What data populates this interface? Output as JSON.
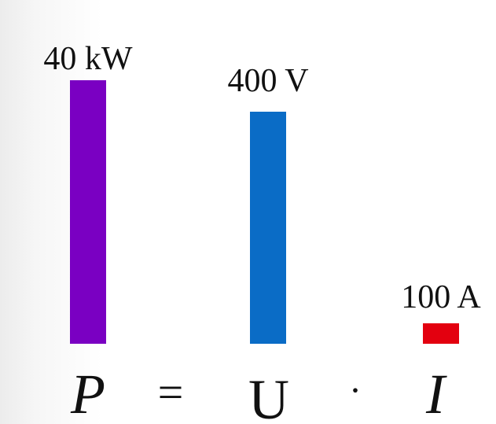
{
  "chart_data": {
    "type": "bar",
    "categories": [
      "P",
      "U",
      "I"
    ],
    "values": [
      40,
      400,
      100
    ],
    "value_labels": [
      "40 kW",
      "400 V",
      "100 A"
    ],
    "units": [
      "kW",
      "V",
      "A"
    ],
    "colors": [
      "#7a00c2",
      "#0a6cc6",
      "#e3000f"
    ],
    "equation": {
      "lhs": "P",
      "equals": "=",
      "term1": "U",
      "operator": "·",
      "term2": "I"
    },
    "grid": false,
    "legend": "none"
  }
}
